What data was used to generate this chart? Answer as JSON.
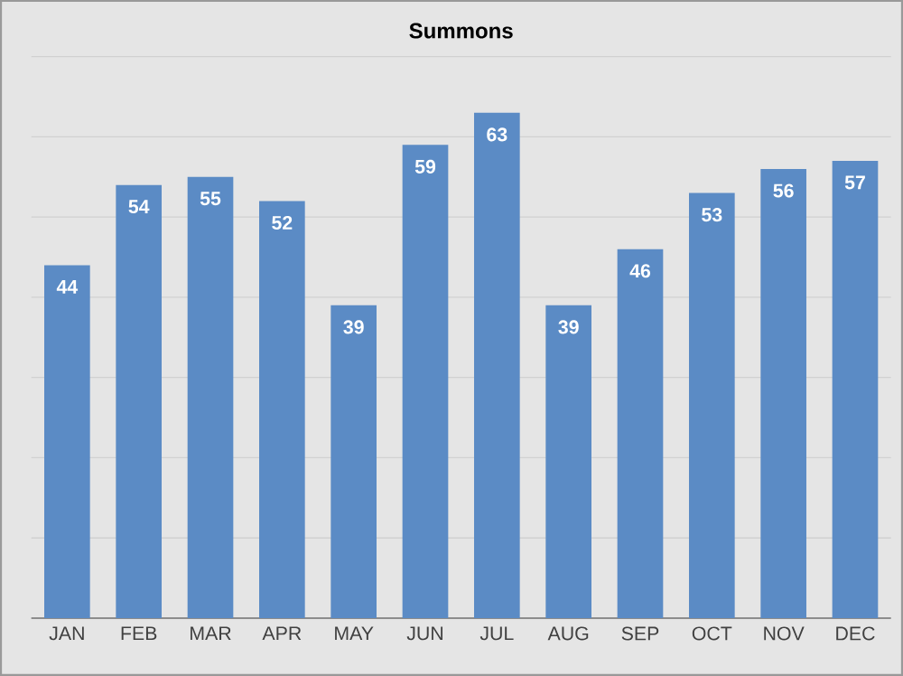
{
  "chart_data": {
    "type": "bar",
    "title": "Summons",
    "categories": [
      "JAN",
      "FEB",
      "MAR",
      "APR",
      "MAY",
      "JUN",
      "JUL",
      "AUG",
      "SEP",
      "OCT",
      "NOV",
      "DEC"
    ],
    "values": [
      44,
      54,
      55,
      52,
      39,
      59,
      63,
      39,
      46,
      53,
      56,
      57
    ],
    "color": "#5b8bc5",
    "ylim": [
      0,
      70
    ],
    "yticks": [
      {
        "value": 0,
        "label": null
      },
      {
        "value": 10,
        "label": null
      },
      {
        "value": 20,
        "label": null
      },
      {
        "value": 30,
        "label": null
      },
      {
        "value": 40,
        "label": null
      },
      {
        "value": 50,
        "label": null
      },
      {
        "value": 60,
        "label": null
      },
      {
        "value": 70,
        "label": null
      }
    ],
    "tick_labels": "x",
    "grid": "y",
    "data_labels": true
  }
}
